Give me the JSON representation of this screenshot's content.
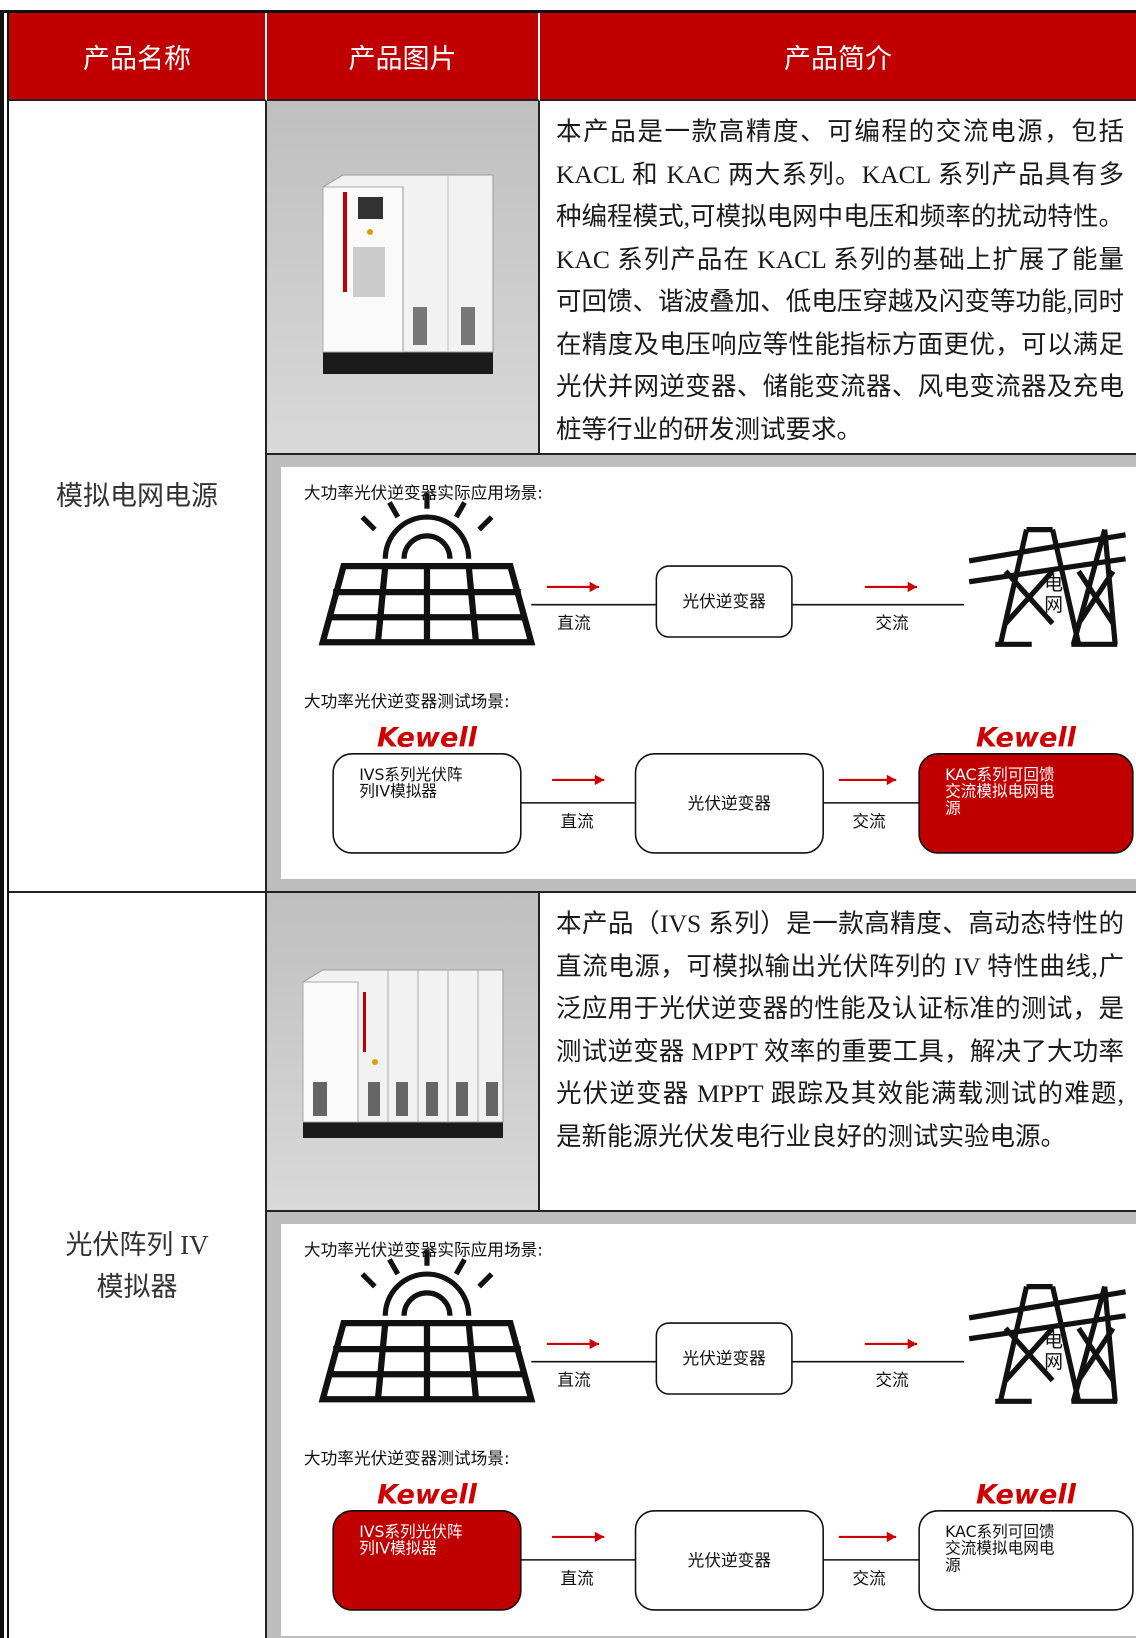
{
  "header": {
    "columns": [
      "产品名称",
      "产品图片",
      "产品简介"
    ]
  },
  "products": [
    {
      "name_lines": [
        "模拟电网电源"
      ],
      "description": "本产品是一款高精度、可编程的交流电源，包括 KACL 和 KAC 两大系列。KACL 系列产品具有多种编程模式,可模拟电网中电压和频率的扰动特性。KAC 系列产品在 KACL 系列的基础上扩展了能量可回馈、谐波叠加、低电压穿越及闪变等功能,同时在精度及电压响应等性能指标方面更优，可以满足光伏并网逆变器、储能变流器、风电变流器及充电桩等行业的研发测试要求。",
      "diagram": {
        "real_title": "大功率光伏逆变器实际应用场景:",
        "real_dc": "直流",
        "real_inverter": "光伏逆变器",
        "real_ac": "交流",
        "grid_lines": [
          "电",
          "网"
        ],
        "test_title": "大功率光伏逆变器测试场景:",
        "left_brand": "Kewell",
        "left_box": {
          "lines": [
            "IVS系列光伏阵",
            "列IV模拟器"
          ],
          "color": "#ffffff"
        },
        "test_dc": "直流",
        "test_inverter": "光伏逆变器",
        "test_ac": "交流",
        "right_brand": "Kewell",
        "right_box": {
          "lines": [
            "KAC系列可回馈",
            "交流模拟电网电",
            "源"
          ],
          "color": "#c00000"
        }
      }
    },
    {
      "name_lines": [
        "光伏阵列 IV",
        "模拟器"
      ],
      "description": "本产品（IVS 系列）是一款高精度、高动态特性的直流电源，可模拟输出光伏阵列的 IV 特性曲线,广泛应用于光伏逆变器的性能及认证标准的测试，是测试逆变器 MPPT 效率的重要工具，解决了大功率光伏逆变器 MPPT 跟踪及其效能满载测试的难题,是新能源光伏发电行业良好的测试实验电源。",
      "diagram": {
        "real_title": "大功率光伏逆变器实际应用场景:",
        "real_dc": "直流",
        "real_inverter": "光伏逆变器",
        "real_ac": "交流",
        "grid_lines": [
          "电",
          "网"
        ],
        "test_title": "大功率光伏逆变器测试场景:",
        "left_brand": "Kewell",
        "left_box": {
          "lines": [
            "IVS系列光伏阵",
            "列IV模拟器"
          ],
          "color": "#c00000"
        },
        "test_dc": "直流",
        "test_inverter": "光伏逆变器",
        "test_ac": "交流",
        "right_brand": "Kewell",
        "right_box": {
          "lines": [
            "KAC系列可回馈",
            "交流模拟电网电",
            "源"
          ],
          "color": "#ffffff"
        }
      }
    }
  ]
}
